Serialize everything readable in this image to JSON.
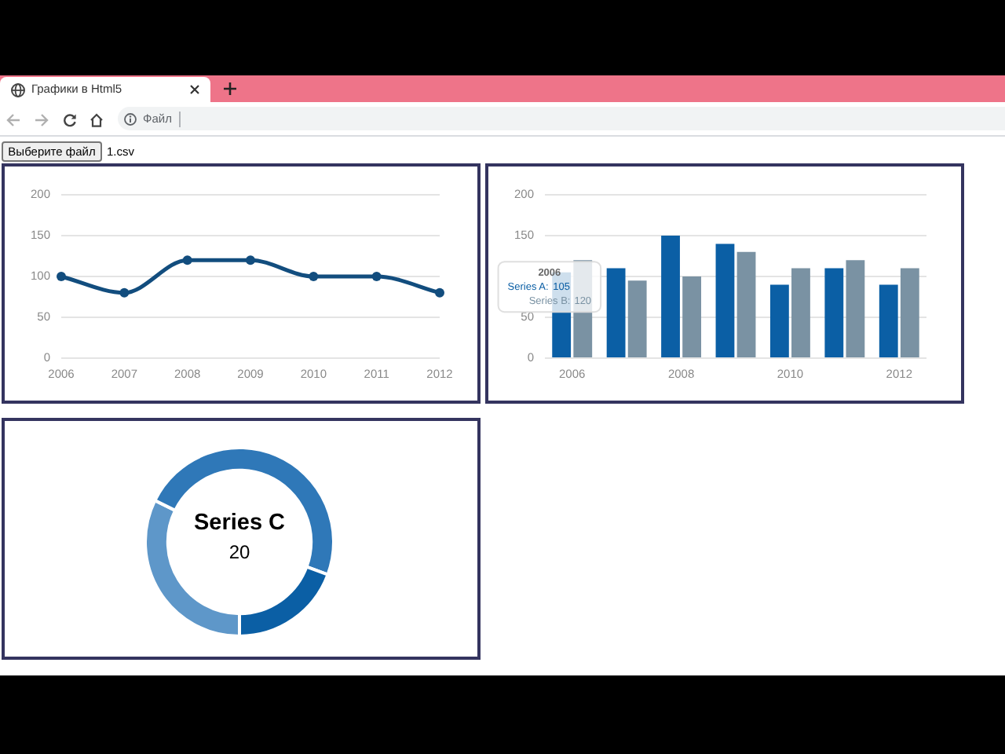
{
  "chart_data": [
    {
      "type": "other",
      "title": "Графики в Html5",
      "annotations": [
        "Файл",
        "Выберите файл",
        "1.csv"
      ]
    },
    {
      "type": "line",
      "categories": [
        "2006",
        "2007",
        "2008",
        "2009",
        "2010",
        "2011",
        "2012"
      ],
      "values": [
        100,
        80,
        120,
        120,
        100,
        100,
        80
      ],
      "color": "#124d7e",
      "ylim": [
        0,
        200
      ],
      "yticks": [
        0,
        50,
        100,
        150,
        200
      ],
      "grid": "y",
      "marker": "circle"
    },
    {
      "type": "bar",
      "categories": [
        "2006",
        null,
        "2008",
        null,
        "2010",
        null,
        "2012"
      ],
      "series": [
        {
          "name": "Series A:",
          "color": "#0b5fa5",
          "values": [
            105,
            110,
            150,
            140,
            90,
            110,
            90
          ],
          "value_labels": [
            "105",
            null,
            null,
            null,
            null,
            null,
            null
          ]
        },
        {
          "name": "Series B:",
          "color": "#7a92a3",
          "values": [
            120,
            95,
            100,
            130,
            110,
            120,
            110
          ],
          "value_labels": [
            "120",
            null,
            null,
            null,
            null,
            null,
            null
          ]
        }
      ],
      "ylim": [
        0,
        200
      ],
      "yticks": [
        0,
        50,
        {
          "value": 100,
          "label": null
        },
        150,
        200
      ],
      "grid": "y"
    },
    {
      "type": "donut",
      "categories": [
        "Series C",
        null,
        null
      ],
      "values": [
        20,
        30,
        12
      ],
      "colors": [
        "#5e97c9",
        "#2f78b8",
        "#0b5fa5"
      ],
      "value_labels": [
        "20",
        null,
        null
      ]
    }
  ]
}
